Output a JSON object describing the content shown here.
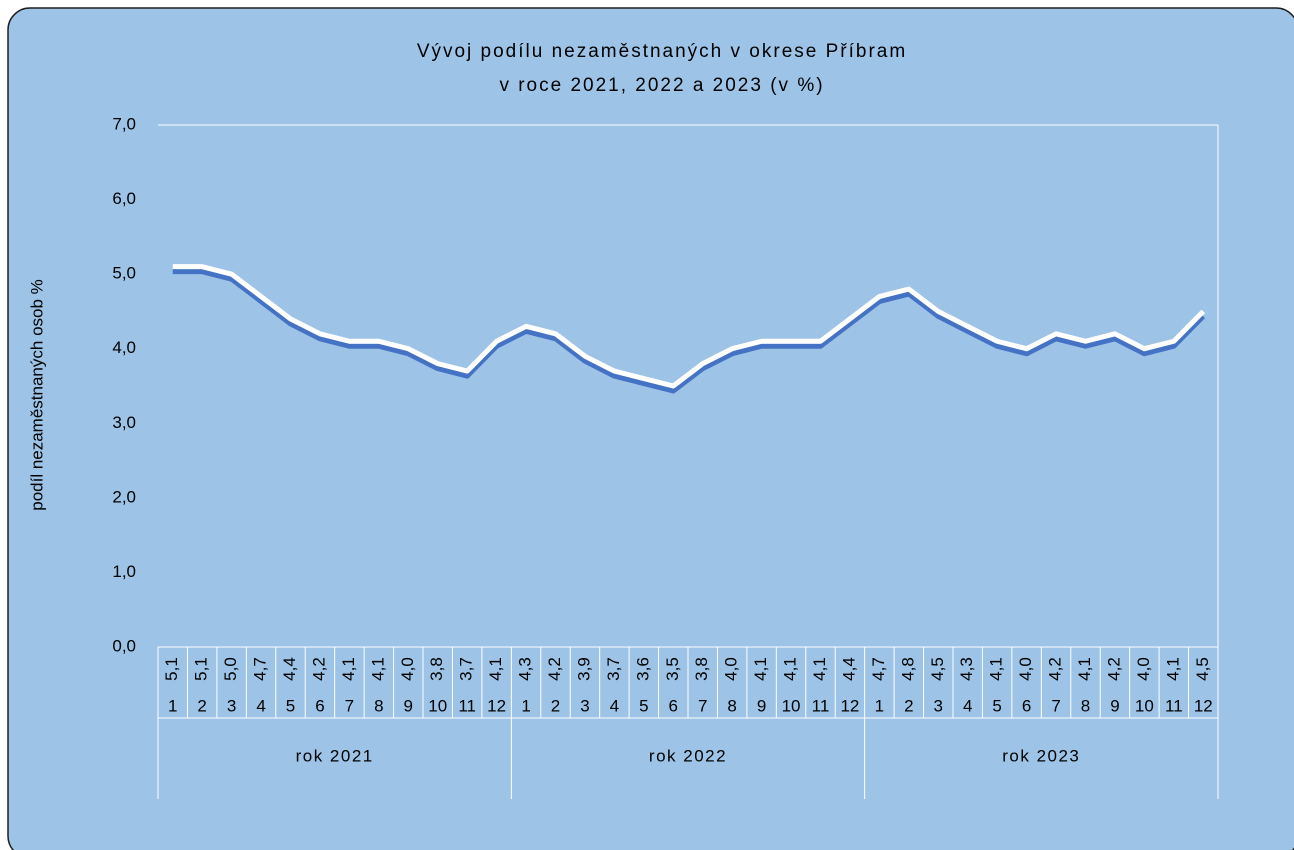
{
  "chart_data": {
    "type": "line",
    "title": [
      "Vývoj podílu nezaměstnaných v okrese Příbram",
      "v roce 2021, 2022 a 2023 (v %)"
    ],
    "y_label": "podíl nezaměstnaných  osob  %",
    "categories": [
      "1",
      "2",
      "3",
      "4",
      "5",
      "6",
      "7",
      "8",
      "9",
      "10",
      "11",
      "12",
      "1",
      "2",
      "3",
      "4",
      "5",
      "6",
      "7",
      "8",
      "9",
      "10",
      "11",
      "12",
      "1",
      "2",
      "3",
      "4",
      "5",
      "6",
      "7",
      "8",
      "9",
      "10",
      "11",
      "12"
    ],
    "category_groups": [
      "rok 2021",
      "rok 2022",
      "rok 2023"
    ],
    "series": [
      {
        "color": "#ffffff",
        "values": [
          5.1,
          5.1,
          5.0,
          4.7,
          4.4,
          4.2,
          4.1,
          4.1,
          4.0,
          3.8,
          3.7,
          4.1,
          4.3,
          4.2,
          3.9,
          3.7,
          3.6,
          3.5,
          3.8,
          4.0,
          4.1,
          4.1,
          4.1,
          4.4,
          4.7,
          4.8,
          4.5,
          4.3,
          4.1,
          4.0,
          4.2,
          4.1,
          4.2,
          4.0,
          4.1,
          4.5
        ],
        "value_labels": [
          "5,1",
          "5,1",
          "5,0",
          "4,7",
          "4,4",
          "4,2",
          "4,1",
          "4,1",
          "4,0",
          "3,8",
          "3,7",
          "4,1",
          "4,3",
          "4,2",
          "3,9",
          "3,7",
          "3,6",
          "3,5",
          "3,8",
          "4,0",
          "4,1",
          "4,1",
          "4,1",
          "4,4",
          "4,7",
          "4,8",
          "4,5",
          "4,3",
          "4,1",
          "4,0",
          "4,2",
          "4,1",
          "4,2",
          "4,0",
          "4,1",
          "4,5"
        ]
      }
    ],
    "ylim": [
      0,
      7
    ],
    "yticks": [
      {
        "value": 0,
        "label": "0,0"
      },
      {
        "value": 1,
        "label": "1,0"
      },
      {
        "value": 2,
        "label": "2,0"
      },
      {
        "value": 3,
        "label": "3,0"
      },
      {
        "value": 4,
        "label": "4,0"
      },
      {
        "value": 5,
        "label": "5,0"
      },
      {
        "value": 6,
        "label": "6,0"
      },
      {
        "value": 7,
        "label": "7,0"
      }
    ],
    "shadow_color": "#4472c4",
    "background": "#9dc3e6"
  }
}
